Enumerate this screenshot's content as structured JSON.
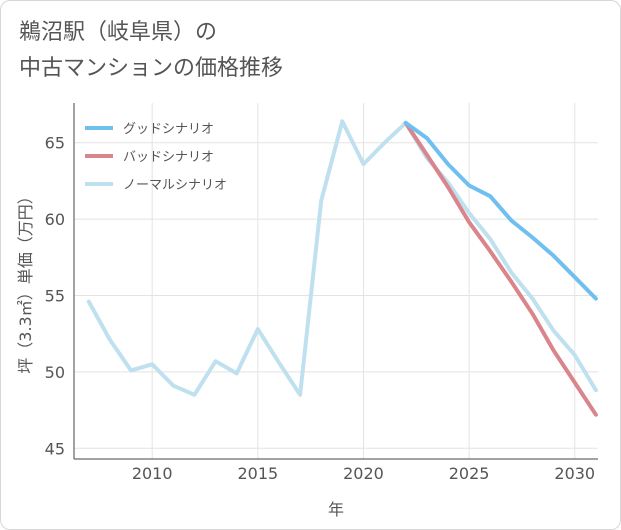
{
  "header": {
    "title_line1": "鵜沼駅（岐阜県）の",
    "title_line2": "中古マンションの価格推移"
  },
  "colors": {
    "good": "#6fbfef",
    "bad": "#d9858b",
    "normal": "#bfe0ee",
    "grid": "#e3e3e3",
    "axis": "#444444"
  },
  "chart_data": {
    "type": "line",
    "title": "鵜沼駅（岐阜県）の中古マンションの価格推移",
    "xlabel": "年",
    "ylabel": "坪（3.3㎡）単価（万円）",
    "xlim": [
      2006.3,
      2031.1
    ],
    "ylim": [
      44.3,
      67.6
    ],
    "xticks": [
      2010,
      2015,
      2020,
      2025,
      2030
    ],
    "yticks": [
      45,
      50,
      55,
      60,
      65
    ],
    "legend_position": "top-left",
    "series": [
      {
        "name": "グッドシナリオ",
        "key": "good",
        "x": [
          2022,
          2023,
          2024,
          2025,
          2026,
          2027,
          2028,
          2029,
          2030,
          2031
        ],
        "y": [
          66.3,
          65.3,
          63.6,
          62.2,
          61.5,
          59.9,
          58.8,
          57.6,
          56.2,
          54.8
        ]
      },
      {
        "name": "バッドシナリオ",
        "key": "bad",
        "x": [
          2022,
          2023,
          2024,
          2025,
          2026,
          2027,
          2028,
          2029,
          2030,
          2031
        ],
        "y": [
          66.3,
          64.2,
          62.1,
          59.8,
          57.9,
          55.9,
          53.8,
          51.4,
          49.3,
          47.2
        ]
      },
      {
        "name": "ノーマルシナリオ",
        "key": "normal",
        "x": [
          2007,
          2008,
          2009,
          2010,
          2011,
          2012,
          2013,
          2014,
          2015,
          2016,
          2017,
          2018,
          2019,
          2020,
          2021,
          2022,
          2023,
          2024,
          2025,
          2026,
          2027,
          2028,
          2029,
          2030,
          2031
        ],
        "y": [
          54.6,
          52.1,
          50.1,
          50.5,
          49.1,
          48.5,
          50.7,
          49.9,
          52.8,
          50.6,
          48.5,
          61.2,
          66.4,
          63.6,
          65.0,
          66.3,
          64.0,
          62.4,
          60.4,
          58.7,
          56.5,
          54.8,
          52.7,
          51.1,
          48.8
        ]
      }
    ]
  }
}
